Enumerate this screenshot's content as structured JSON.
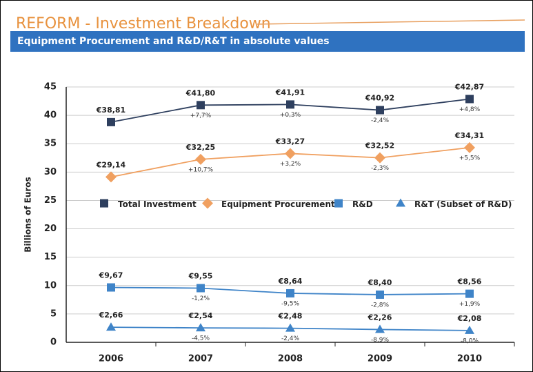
{
  "chart_data": {
    "type": "line",
    "title": "REFORM - Investment Breakdown",
    "subtitle": "Equipment Procurement and R&D/R&T in absolute values",
    "ylabel": "Billions of Euros",
    "categories": [
      "2006",
      "2007",
      "2008",
      "2009",
      "2010"
    ],
    "ylim": [
      0,
      45
    ],
    "yticks": [
      0,
      5,
      10,
      15,
      20,
      25,
      30,
      35,
      40,
      45
    ],
    "grid": true,
    "legend": "center",
    "series": [
      {
        "name": "Total Investment",
        "color": "#2e3f5e",
        "marker": "square",
        "values": [
          38.81,
          41.8,
          41.91,
          40.92,
          42.87
        ],
        "value_labels": [
          "€38,81",
          "€41,80",
          "€41,91",
          "€40,92",
          "€42,87"
        ],
        "change_labels": [
          null,
          "+7,7%",
          "+0,3%",
          "-2,4%",
          "+4,8%"
        ]
      },
      {
        "name": "Equipment Procurement",
        "color": "#f0a060",
        "marker": "diamond",
        "values": [
          29.14,
          32.25,
          33.27,
          32.52,
          34.31
        ],
        "value_labels": [
          "€29,14",
          "€32,25",
          "€33,27",
          "€32,52",
          "€34,31"
        ],
        "change_labels": [
          null,
          "+10,7%",
          "+3,2%",
          "-2,3%",
          "+5,5%"
        ]
      },
      {
        "name": "R&D",
        "color": "#3f84c8",
        "marker": "square",
        "values": [
          9.67,
          9.55,
          8.64,
          8.4,
          8.56
        ],
        "value_labels": [
          "€9,67",
          "€9,55",
          "€8,64",
          "€8,40",
          "€8,56"
        ],
        "change_labels": [
          null,
          "-1,2%",
          "-9,5%",
          "-2,8%",
          "+1,9%"
        ]
      },
      {
        "name": "R&T (Subset of R&D)",
        "color": "#3f84c8",
        "marker": "triangle",
        "values": [
          2.66,
          2.54,
          2.48,
          2.26,
          2.08
        ],
        "value_labels": [
          "€2,66",
          "€2,54",
          "€2,48",
          "€2,26",
          "€2,08"
        ],
        "change_labels": [
          null,
          "-4,5%",
          "-2,4%",
          "-8,9%",
          "-8,0%"
        ]
      }
    ]
  }
}
